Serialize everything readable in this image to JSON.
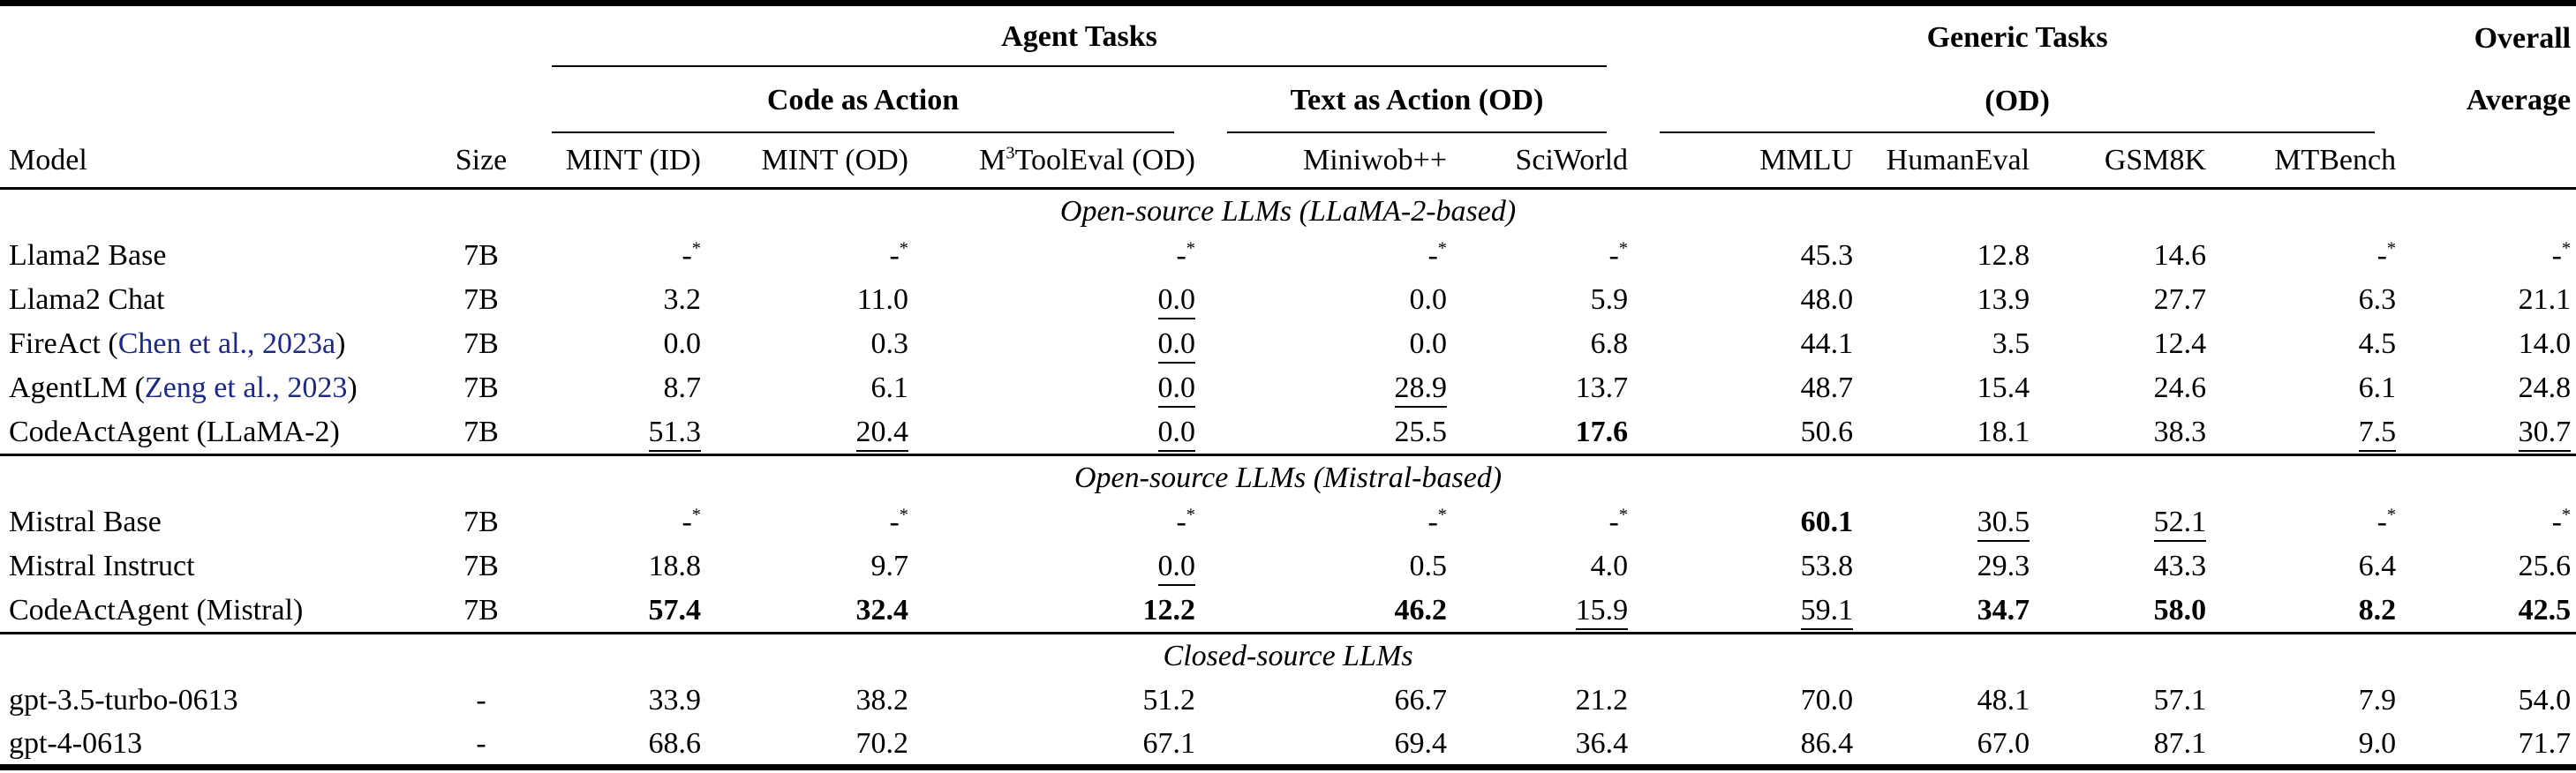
{
  "page": {
    "background": "#ffffff",
    "text_color": "#000000",
    "citation_color": "#1d2a85"
  },
  "header": {
    "agent_tasks": "Agent Tasks",
    "code_as_action": "Code as Action",
    "text_as_action": "Text as Action (OD)",
    "generic_tasks_line1": "Generic Tasks",
    "generic_tasks_line2": "(OD)",
    "overall_line1": "Overall",
    "overall_line2": "Average",
    "model": "Model",
    "size": "Size",
    "cols": {
      "mint_id": "MINT (ID)",
      "mint_od": "MINT (OD)",
      "m3_pre": "M",
      "m3_sup": "3",
      "m3_post": "ToolEval (OD)",
      "miniwob": "Miniwob++",
      "sciworld": "SciWorld",
      "mmlu": "MMLU",
      "humaneval": "HumanEval",
      "gsm8k": "GSM8K",
      "mtbench": "MTBench"
    }
  },
  "sections": [
    {
      "label": "Open-source LLMs (LLaMA-2-based)",
      "rows": [
        {
          "model": "Llama2 Base",
          "cite": null,
          "size": "7B",
          "cells": [
            {
              "v": "-",
              "sup": "*"
            },
            {
              "v": "-",
              "sup": "*"
            },
            {
              "v": "-",
              "sup": "*"
            },
            {
              "v": "-",
              "sup": "*"
            },
            {
              "v": "-",
              "sup": "*"
            },
            {
              "v": "45.3"
            },
            {
              "v": "12.8"
            },
            {
              "v": "14.6"
            },
            {
              "v": "-",
              "sup": "*"
            },
            {
              "v": "-",
              "sup": "*"
            }
          ]
        },
        {
          "model": "Llama2 Chat",
          "cite": null,
          "size": "7B",
          "cells": [
            {
              "v": "3.2"
            },
            {
              "v": "11.0"
            },
            {
              "v": "0.0",
              "s": "u"
            },
            {
              "v": "0.0"
            },
            {
              "v": "5.9"
            },
            {
              "v": "48.0"
            },
            {
              "v": "13.9"
            },
            {
              "v": "27.7"
            },
            {
              "v": "6.3"
            },
            {
              "v": "21.1"
            }
          ]
        },
        {
          "model": "FireAct",
          "cite": "Chen et al., 2023a",
          "size": "7B",
          "cells": [
            {
              "v": "0.0"
            },
            {
              "v": "0.3"
            },
            {
              "v": "0.0",
              "s": "u"
            },
            {
              "v": "0.0"
            },
            {
              "v": "6.8"
            },
            {
              "v": "44.1"
            },
            {
              "v": "3.5"
            },
            {
              "v": "12.4"
            },
            {
              "v": "4.5"
            },
            {
              "v": "14.0"
            }
          ]
        },
        {
          "model": "AgentLM",
          "cite": "Zeng et al., 2023",
          "size": "7B",
          "cells": [
            {
              "v": "8.7"
            },
            {
              "v": "6.1"
            },
            {
              "v": "0.0",
              "s": "u"
            },
            {
              "v": "28.9",
              "s": "u"
            },
            {
              "v": "13.7"
            },
            {
              "v": "48.7"
            },
            {
              "v": "15.4"
            },
            {
              "v": "24.6"
            },
            {
              "v": "6.1"
            },
            {
              "v": "24.8"
            }
          ]
        },
        {
          "model": "CodeActAgent (LLaMA-2)",
          "cite": null,
          "size": "7B",
          "cells": [
            {
              "v": "51.3",
              "s": "u"
            },
            {
              "v": "20.4",
              "s": "u"
            },
            {
              "v": "0.0",
              "s": "u"
            },
            {
              "v": "25.5"
            },
            {
              "v": "17.6",
              "s": "b"
            },
            {
              "v": "50.6"
            },
            {
              "v": "18.1"
            },
            {
              "v": "38.3"
            },
            {
              "v": "7.5",
              "s": "u"
            },
            {
              "v": "30.7",
              "s": "u"
            }
          ]
        }
      ]
    },
    {
      "label": "Open-source LLMs (Mistral-based)",
      "rows": [
        {
          "model": "Mistral Base",
          "cite": null,
          "size": "7B",
          "cells": [
            {
              "v": "-",
              "sup": "*"
            },
            {
              "v": "-",
              "sup": "*"
            },
            {
              "v": "-",
              "sup": "*"
            },
            {
              "v": "-",
              "sup": "*"
            },
            {
              "v": "-",
              "sup": "*"
            },
            {
              "v": "60.1",
              "s": "b"
            },
            {
              "v": "30.5",
              "s": "u"
            },
            {
              "v": "52.1",
              "s": "u"
            },
            {
              "v": "-",
              "sup": "*"
            },
            {
              "v": "-",
              "sup": "*"
            }
          ]
        },
        {
          "model": "Mistral Instruct",
          "cite": null,
          "size": "7B",
          "cells": [
            {
              "v": "18.8"
            },
            {
              "v": "9.7"
            },
            {
              "v": "0.0",
              "s": "u"
            },
            {
              "v": "0.5"
            },
            {
              "v": "4.0"
            },
            {
              "v": "53.8"
            },
            {
              "v": "29.3"
            },
            {
              "v": "43.3"
            },
            {
              "v": "6.4"
            },
            {
              "v": "25.6"
            }
          ]
        },
        {
          "model": "CodeActAgent (Mistral)",
          "cite": null,
          "size": "7B",
          "cells": [
            {
              "v": "57.4",
              "s": "b"
            },
            {
              "v": "32.4",
              "s": "b"
            },
            {
              "v": "12.2",
              "s": "b"
            },
            {
              "v": "46.2",
              "s": "b"
            },
            {
              "v": "15.9",
              "s": "u"
            },
            {
              "v": "59.1",
              "s": "u"
            },
            {
              "v": "34.7",
              "s": "b"
            },
            {
              "v": "58.0",
              "s": "b"
            },
            {
              "v": "8.2",
              "s": "b"
            },
            {
              "v": "42.5",
              "s": "b"
            }
          ]
        }
      ]
    },
    {
      "label": "Closed-source LLMs",
      "rows": [
        {
          "model": "gpt-3.5-turbo-0613",
          "cite": null,
          "size": "-",
          "cells": [
            {
              "v": "33.9"
            },
            {
              "v": "38.2"
            },
            {
              "v": "51.2"
            },
            {
              "v": "66.7"
            },
            {
              "v": "21.2"
            },
            {
              "v": "70.0"
            },
            {
              "v": "48.1"
            },
            {
              "v": "57.1"
            },
            {
              "v": "7.9"
            },
            {
              "v": "54.0"
            }
          ]
        },
        {
          "model": "gpt-4-0613",
          "cite": null,
          "size": "-",
          "cells": [
            {
              "v": "68.6"
            },
            {
              "v": "70.2"
            },
            {
              "v": "67.1"
            },
            {
              "v": "69.4"
            },
            {
              "v": "36.4"
            },
            {
              "v": "86.4"
            },
            {
              "v": "67.0"
            },
            {
              "v": "87.1"
            },
            {
              "v": "9.0"
            },
            {
              "v": "71.7"
            }
          ]
        }
      ]
    }
  ]
}
